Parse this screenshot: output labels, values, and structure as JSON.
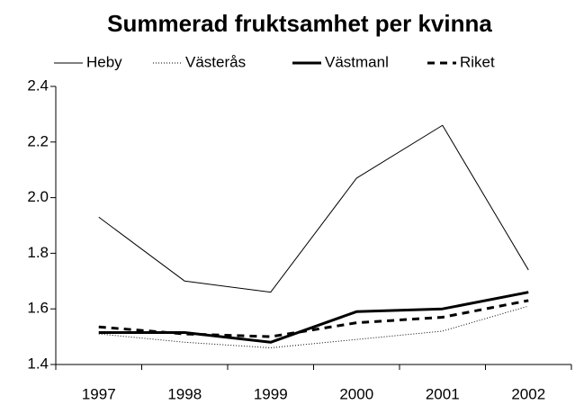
{
  "chart_data": {
    "type": "line",
    "title": "Summerad fruktsamhet per kvinna",
    "categories": [
      "1997",
      "1998",
      "1999",
      "2000",
      "2001",
      "2002"
    ],
    "series": [
      {
        "name": "Heby",
        "color": "#000000",
        "line_style": "thin",
        "values": [
          1.93,
          1.7,
          1.66,
          2.07,
          2.26,
          1.74
        ]
      },
      {
        "name": "Västerås",
        "color": "#000000",
        "line_style": "dotted",
        "values": [
          1.51,
          1.48,
          1.46,
          1.49,
          1.52,
          1.61
        ]
      },
      {
        "name": "Västmanl",
        "color": "#000000",
        "line_style": "thick",
        "values": [
          1.515,
          1.515,
          1.48,
          1.59,
          1.6,
          1.66
        ]
      },
      {
        "name": "Riket",
        "color": "#000000",
        "line_style": "dashed",
        "values": [
          1.535,
          1.51,
          1.5,
          1.55,
          1.57,
          1.63
        ]
      }
    ],
    "ylim": [
      1.4,
      2.4
    ],
    "yticks": [
      1.4,
      1.6,
      1.8,
      {
        "value": 2,
        "label": "2.0"
      },
      2.2,
      2.4
    ],
    "grid": false,
    "legend": "top"
  }
}
